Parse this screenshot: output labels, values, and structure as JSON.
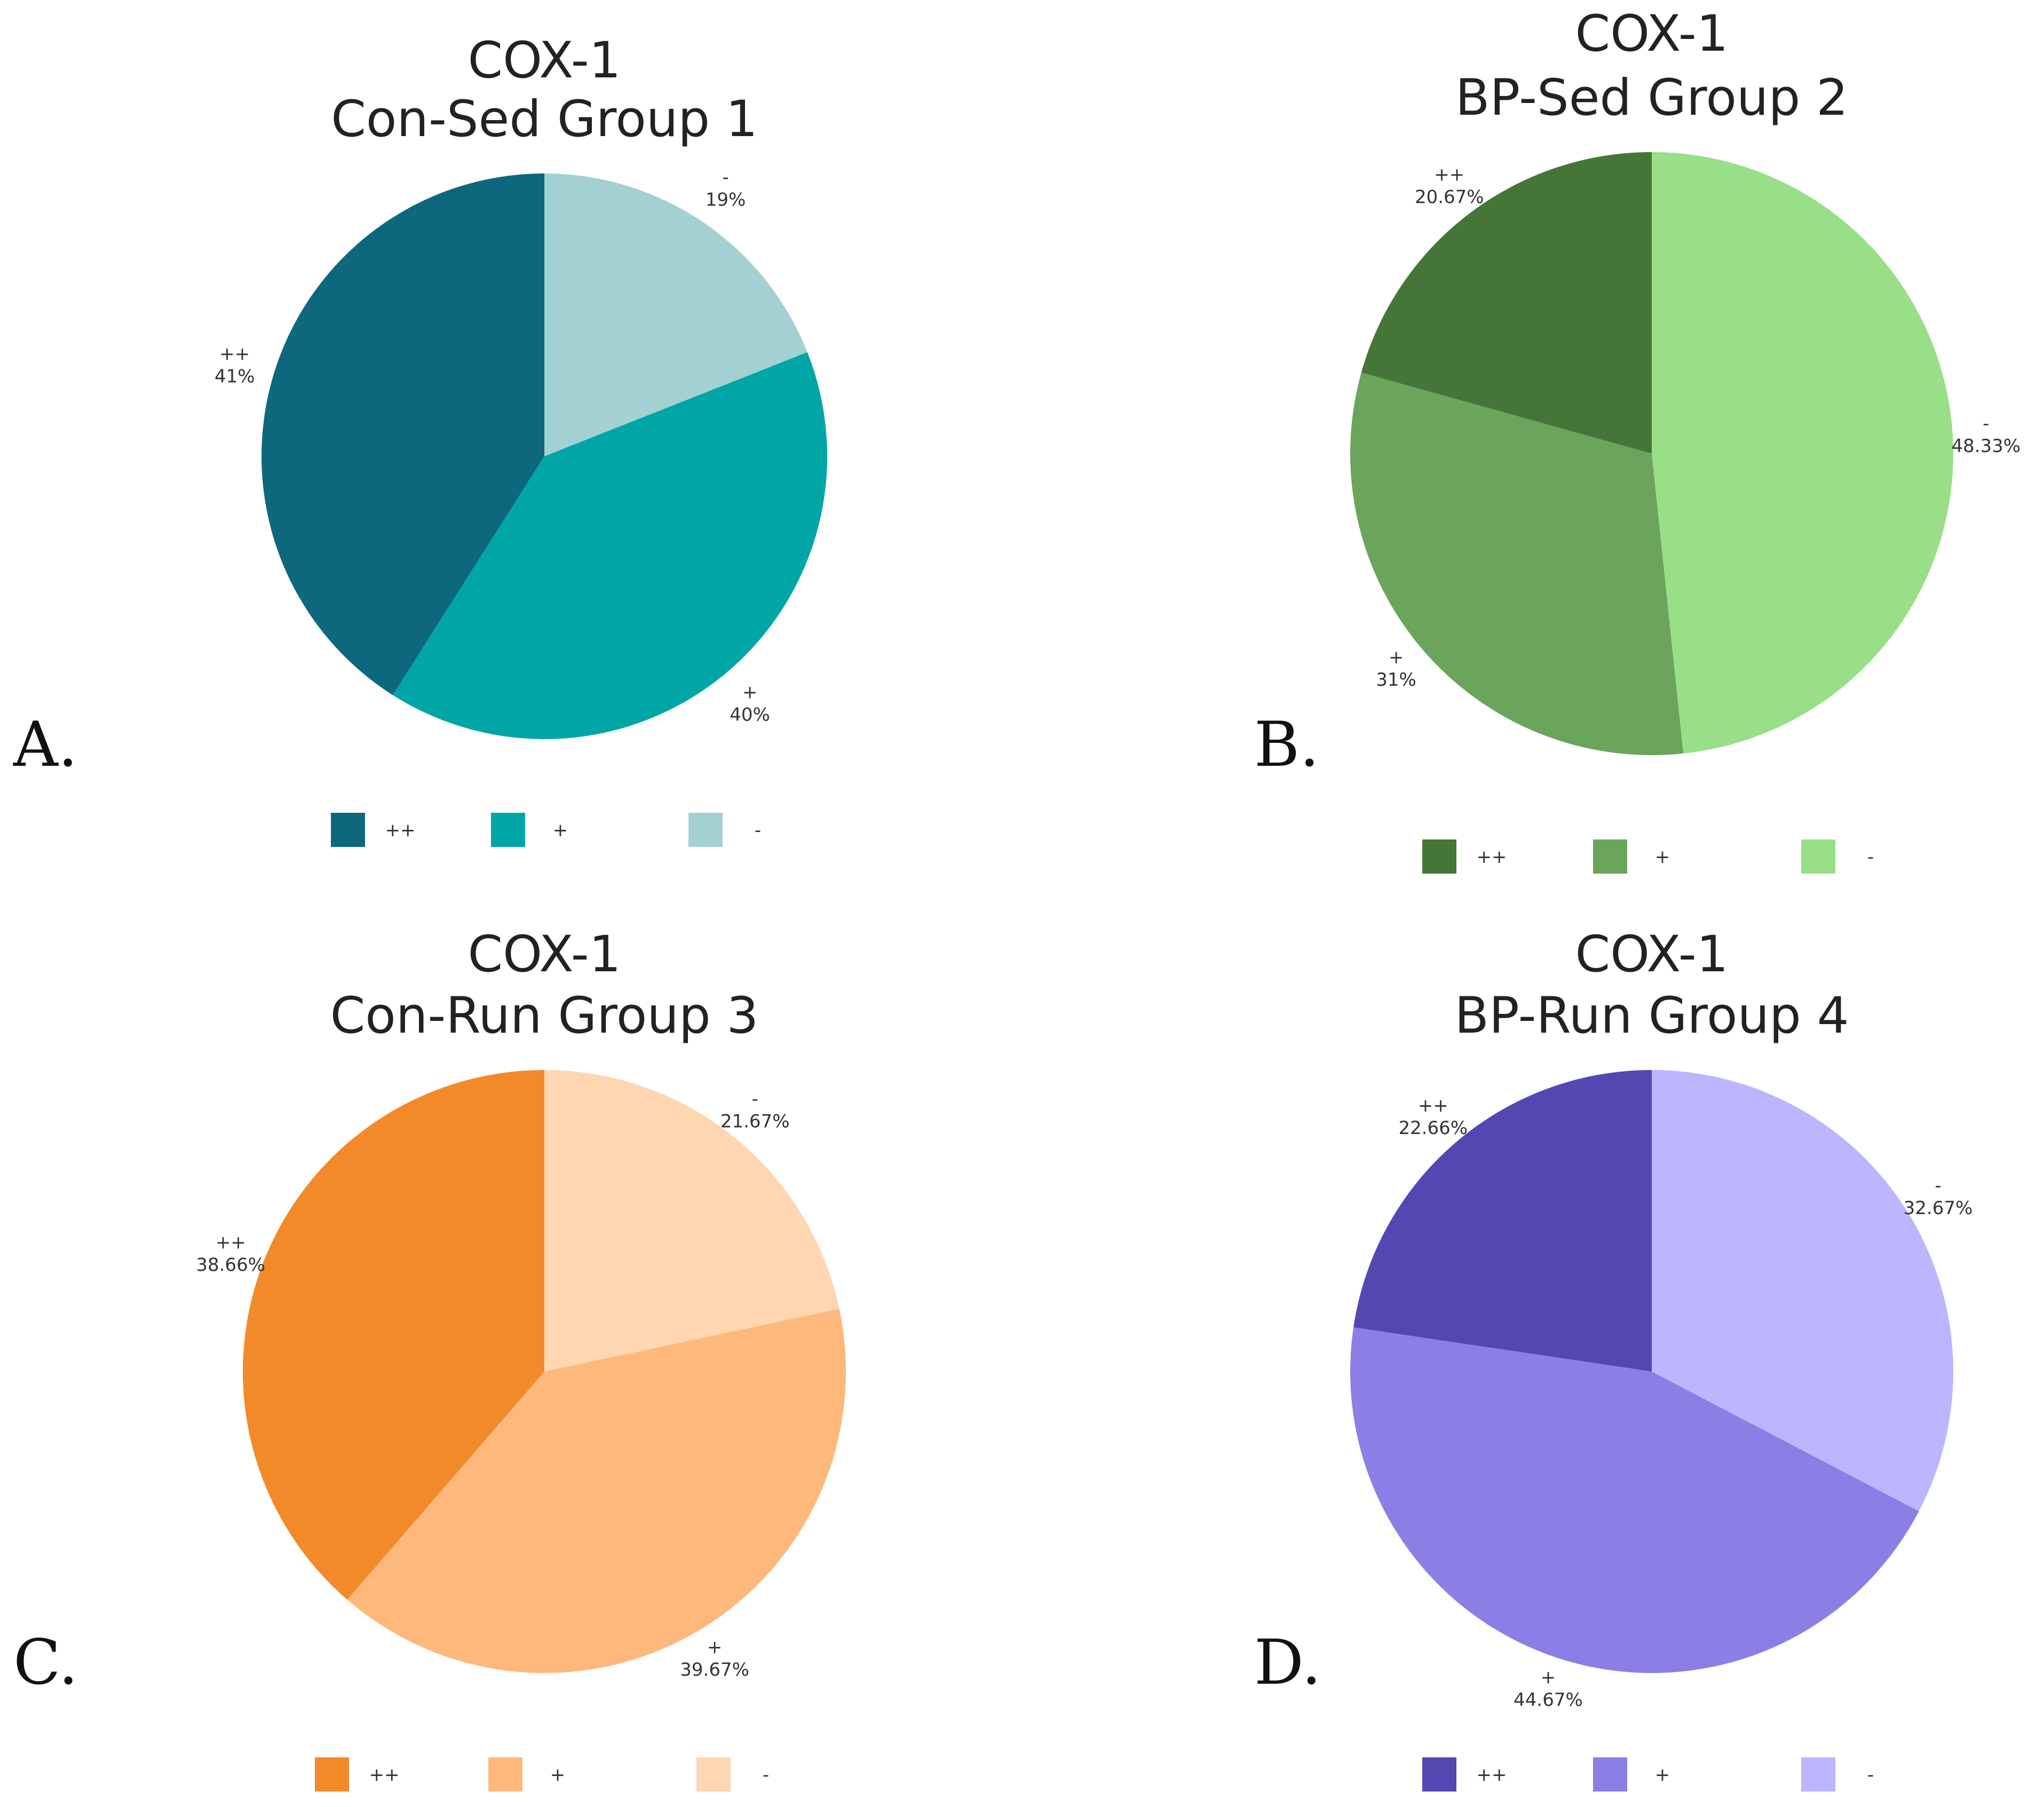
{
  "chart_data": [
    {
      "type": "pie",
      "panel": "A.",
      "title": [
        "COX-1",
        "Con-Sed Group 1"
      ],
      "slices": [
        {
          "label": "++",
          "value": 41,
          "display": "41%",
          "color": "#0e687d"
        },
        {
          "label": "+",
          "value": 40,
          "display": "40%",
          "color": "#00a6a6"
        },
        {
          "label": "-",
          "value": 19,
          "display": "19%",
          "color": "#a3d0d1"
        }
      ],
      "legend": {
        "position": "bottom",
        "entries": [
          "++",
          "+",
          "-"
        ]
      }
    },
    {
      "type": "pie",
      "panel": "B.",
      "title": [
        "COX-1",
        "BP-Sed Group 2"
      ],
      "slices": [
        {
          "label": "++",
          "value": 20.67,
          "display": "20.67%",
          "color": "#457638"
        },
        {
          "label": "+",
          "value": 31,
          "display": "31%",
          "color": "#6aa55b"
        },
        {
          "label": "-",
          "value": 48.33,
          "display": "48.33%",
          "color": "#98df88"
        }
      ],
      "legend": {
        "position": "bottom",
        "entries": [
          "++",
          "+",
          "-"
        ]
      }
    },
    {
      "type": "pie",
      "panel": "C.",
      "title": [
        "COX-1",
        "Con-Run Group 3"
      ],
      "slices": [
        {
          "label": "++",
          "value": 38.66,
          "display": "38.66%",
          "color": "#f28a2a"
        },
        {
          "label": "+",
          "value": 39.67,
          "display": "39.67%",
          "color": "#feb87c"
        },
        {
          "label": "-",
          "value": 21.67,
          "display": "21.67%",
          "color": "#fed6b2"
        }
      ],
      "legend": {
        "position": "bottom",
        "entries": [
          "++",
          "+",
          "-"
        ]
      }
    },
    {
      "type": "pie",
      "panel": "D.",
      "title": [
        "COX-1",
        "BP-Run Group 4"
      ],
      "slices": [
        {
          "label": "++",
          "value": 22.66,
          "display": "22.66%",
          "color": "#5348b2"
        },
        {
          "label": "+",
          "value": 44.67,
          "display": "44.67%",
          "color": "#8b7fe5"
        },
        {
          "label": "-",
          "value": 32.67,
          "display": "32.67%",
          "color": "#bcb6ff"
        }
      ],
      "legend": {
        "position": "bottom",
        "entries": [
          "++",
          "+",
          "-"
        ]
      }
    }
  ]
}
